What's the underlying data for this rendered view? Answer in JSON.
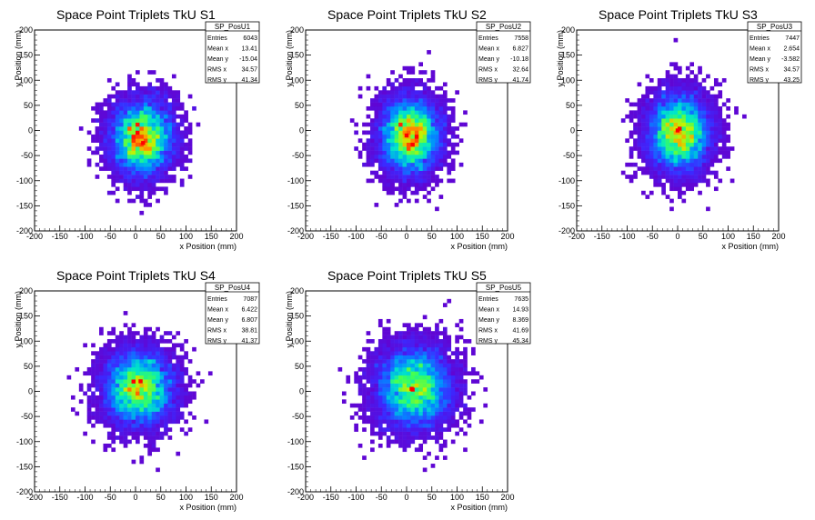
{
  "chart_data": [
    {
      "type": "heatmap",
      "title": "Space Point Triplets TkU S1",
      "xlabel": "x Position (mm)",
      "ylabel": "y Position (mm)",
      "xlim": [
        -200,
        200
      ],
      "ylim": [
        -200,
        200
      ],
      "xticks": [
        -200,
        -150,
        -100,
        -50,
        0,
        50,
        100,
        150,
        200
      ],
      "yticks": [
        -200,
        -150,
        -100,
        -50,
        0,
        50,
        100,
        150,
        200
      ],
      "stats": {
        "name": "SP_PosU1",
        "rows": [
          {
            "label": "Entries",
            "value": "6043"
          },
          {
            "label": "Mean x",
            "value": "13.41"
          },
          {
            "label": "Mean y",
            "value": "-15.04"
          },
          {
            "label": "RMS x",
            "value": "34.57"
          },
          {
            "label": "RMS y",
            "value": "41.34"
          }
        ]
      },
      "entries": 6043,
      "mean_x": 13.41,
      "mean_y": -15.04,
      "rms_x": 34.57,
      "rms_y": 41.34,
      "peak": [
        15,
        -25
      ],
      "colormap": "rainbow"
    },
    {
      "type": "heatmap",
      "title": "Space Point Triplets TkU S2",
      "xlabel": "x Position (mm)",
      "ylabel": "y Position (mm)",
      "xlim": [
        -200,
        200
      ],
      "ylim": [
        -200,
        200
      ],
      "xticks": [
        -200,
        -150,
        -100,
        -50,
        0,
        50,
        100,
        150,
        200
      ],
      "yticks": [
        -200,
        -150,
        -100,
        -50,
        0,
        50,
        100,
        150,
        200
      ],
      "stats": {
        "name": "SP_PosU2",
        "rows": [
          {
            "label": "Entries",
            "value": "7558"
          },
          {
            "label": "Mean x",
            "value": "6.827"
          },
          {
            "label": "Mean y",
            "value": "-10.18"
          },
          {
            "label": "RMS x",
            "value": "32.64"
          },
          {
            "label": "RMS y",
            "value": "41.74"
          }
        ]
      },
      "entries": 7558,
      "mean_x": 6.827,
      "mean_y": -10.18,
      "rms_x": 32.64,
      "rms_y": 41.74,
      "peak": [
        0,
        -10
      ],
      "colormap": "rainbow"
    },
    {
      "type": "heatmap",
      "title": "Space Point Triplets TkU S3",
      "xlabel": "x Position (mm)",
      "ylabel": "y Position (mm)",
      "xlim": [
        -200,
        200
      ],
      "ylim": [
        -200,
        200
      ],
      "xticks": [
        -200,
        -150,
        -100,
        -50,
        0,
        50,
        100,
        150,
        200
      ],
      "yticks": [
        -200,
        -150,
        -100,
        -50,
        0,
        50,
        100,
        150,
        200
      ],
      "stats": {
        "name": "SP_PosU3",
        "rows": [
          {
            "label": "Entries",
            "value": "7447"
          },
          {
            "label": "Mean x",
            "value": "2.654"
          },
          {
            "label": "Mean y",
            "value": "-3.582"
          },
          {
            "label": "RMS x",
            "value": "34.57"
          },
          {
            "label": "RMS y",
            "value": "43.25"
          }
        ]
      },
      "entries": 7447,
      "mean_x": 2.654,
      "mean_y": -3.582,
      "rms_x": 34.57,
      "rms_y": 43.25,
      "peak": [
        0,
        0
      ],
      "colormap": "rainbow"
    },
    {
      "type": "heatmap",
      "title": "Space Point Triplets TkU S4",
      "xlabel": "x Position (mm)",
      "ylabel": "y Position (mm)",
      "xlim": [
        -200,
        200
      ],
      "ylim": [
        -200,
        200
      ],
      "xticks": [
        -200,
        -150,
        -100,
        -50,
        0,
        50,
        100,
        150,
        200
      ],
      "yticks": [
        -200,
        -150,
        -100,
        -50,
        0,
        50,
        100,
        150,
        200
      ],
      "stats": {
        "name": "SP_PosU4",
        "rows": [
          {
            "label": "Entries",
            "value": "7087"
          },
          {
            "label": "Mean x",
            "value": "6.422"
          },
          {
            "label": "Mean y",
            "value": "6.807"
          },
          {
            "label": "RMS x",
            "value": "38.81"
          },
          {
            "label": "RMS y",
            "value": "41.37"
          }
        ]
      },
      "entries": 7087,
      "mean_x": 6.422,
      "mean_y": 6.807,
      "rms_x": 38.81,
      "rms_y": 41.37,
      "peak": [
        10,
        20
      ],
      "colormap": "rainbow"
    },
    {
      "type": "heatmap",
      "title": "Space Point Triplets TkU S5",
      "xlabel": "x Position (mm)",
      "ylabel": "y Position (mm)",
      "xlim": [
        -200,
        200
      ],
      "ylim": [
        -200,
        200
      ],
      "xticks": [
        -200,
        -150,
        -100,
        -50,
        0,
        50,
        100,
        150,
        200
      ],
      "yticks": [
        -200,
        -150,
        -100,
        -50,
        0,
        50,
        100,
        150,
        200
      ],
      "stats": {
        "name": "SP_PosU5",
        "rows": [
          {
            "label": "Entries",
            "value": "7635"
          },
          {
            "label": "Mean x",
            "value": "14.93"
          },
          {
            "label": "Mean y",
            "value": "8.369"
          },
          {
            "label": "RMS x",
            "value": "41.69"
          },
          {
            "label": "RMS y",
            "value": "45.34"
          }
        ]
      },
      "entries": 7635,
      "mean_x": 14.93,
      "mean_y": 8.369,
      "rms_x": 41.69,
      "rms_y": 45.34,
      "peak": [
        10,
        5
      ],
      "colormap": "rainbow"
    }
  ]
}
